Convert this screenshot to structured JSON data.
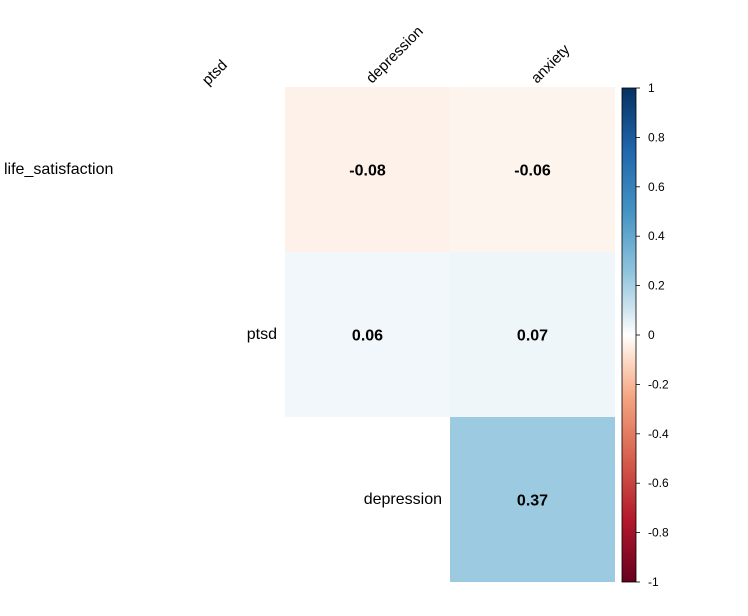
{
  "chart_data": {
    "type": "heatmap",
    "title": "",
    "layout": "upper-triangle",
    "column_labels": [
      "ptsd",
      "depression",
      "anxiety"
    ],
    "row_labels": [
      "life_satisfaction",
      "ptsd",
      "depression"
    ],
    "cells": [
      {
        "row": 0,
        "col": 1,
        "value": -0.08,
        "label": "-0.08"
      },
      {
        "row": 0,
        "col": 2,
        "value": -0.06,
        "label": "-0.06"
      },
      {
        "row": 1,
        "col": 1,
        "value": 0.06,
        "label": "0.06"
      },
      {
        "row": 1,
        "col": 2,
        "value": 0.07,
        "label": "0.07"
      },
      {
        "row": 2,
        "col": 2,
        "value": 0.37,
        "label": "0.37"
      }
    ],
    "colorbar": {
      "range": [
        -1,
        1
      ],
      "ticks": [
        {
          "value": 1,
          "label": "1"
        },
        {
          "value": 0.8,
          "label": "0.8"
        },
        {
          "value": 0.6,
          "label": "0.6"
        },
        {
          "value": 0.4,
          "label": "0.4"
        },
        {
          "value": 0.2,
          "label": "0.2"
        },
        {
          "value": 0,
          "label": "0"
        },
        {
          "value": -0.2,
          "label": "-0.2"
        },
        {
          "value": -0.4,
          "label": "-0.4"
        },
        {
          "value": -0.6,
          "label": "-0.6"
        },
        {
          "value": -0.8,
          "label": "-0.8"
        },
        {
          "value": -1,
          "label": "-1"
        }
      ],
      "colors": {
        "negative_end": "#67001F",
        "negative_mid": "#D6604D",
        "neutral": "#FFFFFF",
        "positive_mid": "#4393C3",
        "positive_end": "#053061"
      }
    }
  }
}
